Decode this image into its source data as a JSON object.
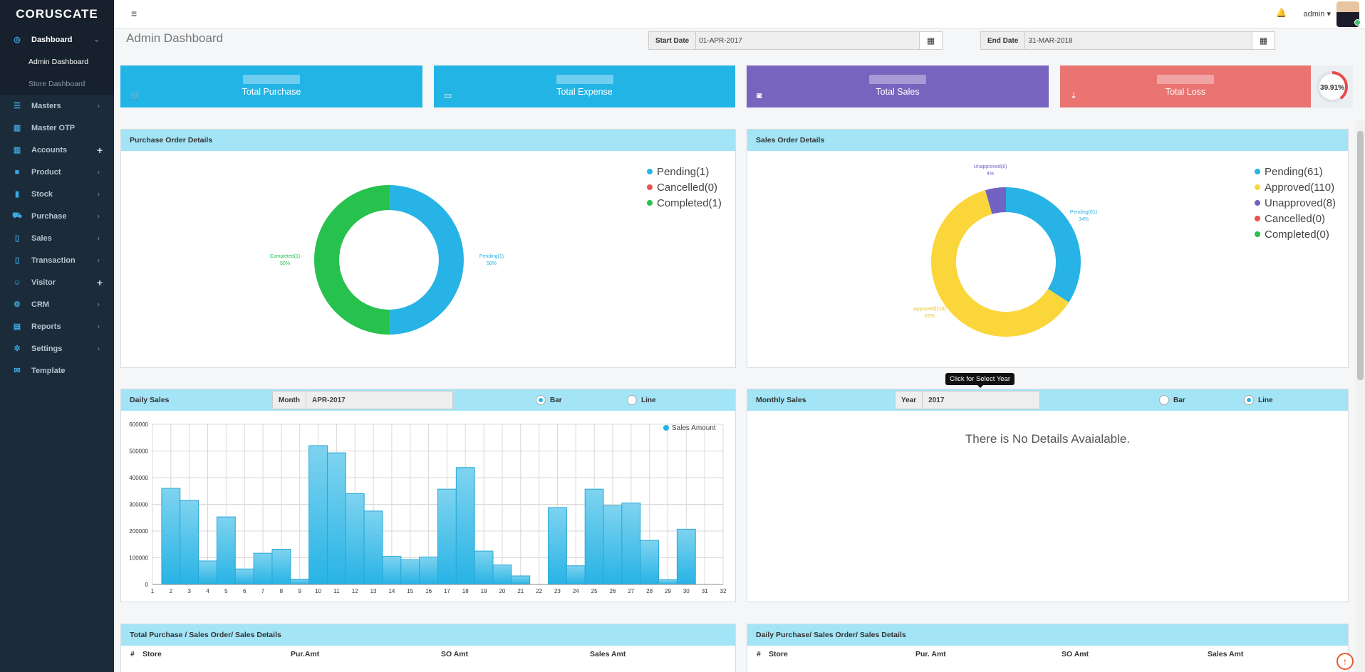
{
  "app": {
    "logo": "CORUSCATE"
  },
  "sidebar": {
    "items": [
      {
        "label": "Dashboard",
        "icon": "dashboard-icon",
        "glyph": "◎",
        "suffix": "⌄",
        "active": true
      },
      {
        "label": "Masters",
        "icon": "list-icon",
        "glyph": "☰",
        "suffix": "›"
      },
      {
        "label": "Master OTP",
        "icon": "table-icon",
        "glyph": "▥",
        "suffix": ""
      },
      {
        "label": "Accounts",
        "icon": "table-icon",
        "glyph": "▥",
        "suffix": "+"
      },
      {
        "label": "Product",
        "icon": "cube-icon",
        "glyph": "■",
        "suffix": "›"
      },
      {
        "label": "Stock",
        "icon": "bar-chart-icon",
        "glyph": "▮",
        "suffix": "›"
      },
      {
        "label": "Purchase",
        "icon": "cart-icon",
        "glyph": "⛟",
        "suffix": "›"
      },
      {
        "label": "Sales",
        "icon": "clipboard-icon",
        "glyph": "▯",
        "suffix": "›"
      },
      {
        "label": "Transaction",
        "icon": "clipboard-icon",
        "glyph": "▯",
        "suffix": "›"
      },
      {
        "label": "Visitor",
        "icon": "user-icon",
        "glyph": "☺",
        "suffix": "+"
      },
      {
        "label": "CRM",
        "icon": "gear-icon",
        "glyph": "⚙",
        "suffix": "›"
      },
      {
        "label": "Reports",
        "icon": "book-icon",
        "glyph": "▤",
        "suffix": "›"
      },
      {
        "label": "Settings",
        "icon": "cog-icon",
        "glyph": "✲",
        "suffix": "›"
      },
      {
        "label": "Template",
        "icon": "envelope-icon",
        "glyph": "✉",
        "suffix": ""
      }
    ],
    "dashboard_sub": [
      {
        "label": "Admin Dashboard"
      },
      {
        "label": "Store Dashboard"
      }
    ]
  },
  "topbar": {
    "menu_icon": "≡",
    "bell_icon": "🔔",
    "user": "admin ▾"
  },
  "header": {
    "title": "Admin Dashboard",
    "start_label": "Start Date",
    "start_value": "01-APR-2017",
    "end_label": "End Date",
    "end_value": "31-MAR-2018",
    "calendar_icon": "▦"
  },
  "stats": [
    {
      "label": "Total Purchase",
      "color": "#23b4e6",
      "icon": "🛒"
    },
    {
      "label": "Total Expense",
      "color": "#23b4e6",
      "icon": "▭"
    },
    {
      "label": "Total Sales",
      "color": "#7764be",
      "icon": "◙"
    },
    {
      "label": "Total Loss",
      "color": "#e97472",
      "icon": "⇣"
    }
  ],
  "loss_percent": {
    "text": "39.91%",
    "value": 39.91,
    "color": "#e84b4b"
  },
  "purchase_orders": {
    "title": "Purchase Order Details",
    "legend": [
      {
        "label": "Pending(1)",
        "color": "#27b3e5"
      },
      {
        "label": "Cancelled(0)",
        "color": "#e85252"
      },
      {
        "label": "Completed(1)",
        "color": "#27c14d"
      }
    ],
    "slice_labels": {
      "pending": "Pending(1)",
      "pending_pct": "50%",
      "completed": "Completed(1)",
      "completed_pct": "50%"
    }
  },
  "sales_orders": {
    "title": "Sales Order Details",
    "legend": [
      {
        "label": "Pending(61)",
        "color": "#27b3e5"
      },
      {
        "label": "Approved(110)",
        "color": "#fad63a"
      },
      {
        "label": "Unapproved(8)",
        "color": "#7262c1"
      },
      {
        "label": "Cancelled(0)",
        "color": "#e85252"
      },
      {
        "label": "Completed(0)",
        "color": "#27c14d"
      }
    ],
    "slice_labels": {
      "unapproved": "Unapproved(8)",
      "unapproved_pct": "4%",
      "pending": "Pending(61)",
      "pending_pct": "34%",
      "approved": "Approved(110)",
      "approved_pct": "61%"
    }
  },
  "daily_sales": {
    "title": "Daily Sales",
    "month_label": "Month",
    "month_value": "APR-2017",
    "radio_bar": "Bar",
    "radio_line": "Line",
    "selected": "bar",
    "legend": "Sales Amount"
  },
  "monthly_sales": {
    "title": "Monthly Sales",
    "year_label": "Year",
    "year_value": "2017",
    "radio_bar": "Bar",
    "radio_line": "Line",
    "selected": "line",
    "tooltip": "Click for Select Year",
    "empty": "There is No Details Avaialable."
  },
  "tables": {
    "total": {
      "title": "Total Purchase / Sales Order/ Sales Details",
      "cols": [
        "#",
        "Store",
        "Pur.Amt",
        "SO Amt",
        "Sales Amt"
      ]
    },
    "daily": {
      "title": "Daily Purchase/ Sales Order/ Sales Details",
      "cols": [
        "#",
        "Store",
        "Pur. Amt",
        "SO Amt",
        "Sales Amt"
      ]
    }
  },
  "chart_data": [
    {
      "type": "pie",
      "title": "Purchase Order Details",
      "labels": [
        "Pending",
        "Cancelled",
        "Completed"
      ],
      "values": [
        1,
        0,
        1
      ],
      "colors": [
        "#27b3e5",
        "#e85252",
        "#27c14d"
      ]
    },
    {
      "type": "pie",
      "title": "Sales Order Details",
      "labels": [
        "Pending",
        "Approved",
        "Unapproved",
        "Cancelled",
        "Completed"
      ],
      "values": [
        61,
        110,
        8,
        0,
        0
      ],
      "colors": [
        "#27b3e5",
        "#fad63a",
        "#7262c1",
        "#e85252",
        "#27c14d"
      ]
    },
    {
      "type": "bar",
      "title": "Daily Sales",
      "x": [
        2,
        3,
        4,
        5,
        6,
        7,
        8,
        9,
        10,
        11,
        12,
        13,
        14,
        15,
        16,
        17,
        18,
        19,
        20,
        21,
        22,
        23,
        24,
        25,
        26,
        27,
        28,
        29,
        30,
        31
      ],
      "series": [
        {
          "name": "Sales Amount",
          "values": [
            360000,
            315000,
            88000,
            253000,
            58000,
            117000,
            132000,
            20000,
            520000,
            493000,
            340000,
            275000,
            105000,
            93000,
            103000,
            357000,
            438000,
            125000,
            73000,
            32000,
            0,
            288000,
            70000,
            357000,
            295000,
            305000,
            165000,
            18000,
            207000,
            0
          ]
        }
      ],
      "xlim": [
        1,
        32
      ],
      "ylim": [
        0,
        600000
      ],
      "yticks": [
        0,
        100000,
        200000,
        300000,
        400000,
        500000,
        600000
      ],
      "grid": true,
      "legend": "top-right"
    }
  ]
}
